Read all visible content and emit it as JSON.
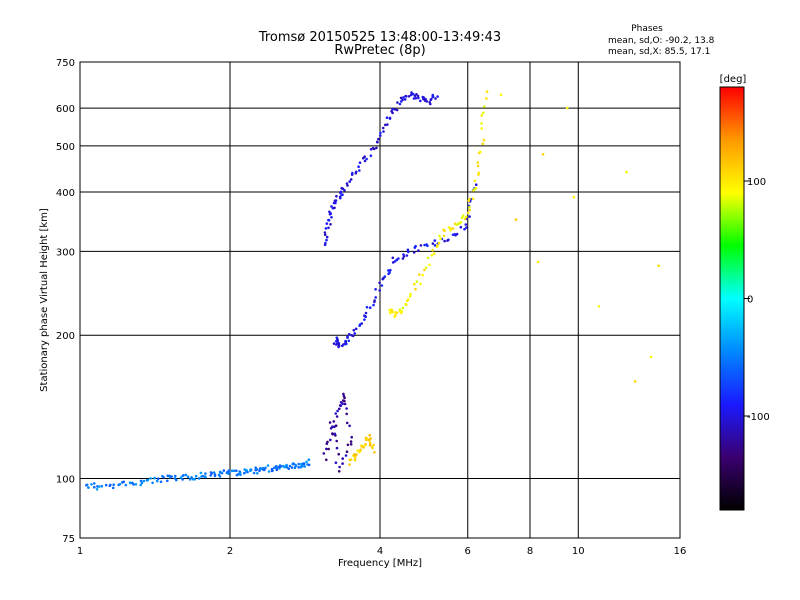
{
  "title_line1": "Tromsø 20150525 13:48:00-13:49:43",
  "title_line2": "RwPretec (8p)",
  "phase_header": "Phases",
  "phase_line_o": "mean, sd,O: -90.2, 13.8",
  "phase_line_x": "mean, sd,X:  85.5, 17.1",
  "colorbar": {
    "label": "[deg]",
    "ticks": [
      "100",
      "0",
      "-100"
    ],
    "tick_values": [
      100,
      0,
      -100
    ],
    "range": [
      -180,
      180
    ],
    "colors": [
      "#000000",
      "#3a0070",
      "#1a1aff",
      "#0088ff",
      "#00ffff",
      "#00ff00",
      "#ffff00",
      "#ff9900",
      "#ff0000"
    ]
  },
  "chart_data": {
    "type": "scatter",
    "title": "Tromsø 20150525 13:48:00-13:49:43",
    "subtitle": "RwPretec (8p)",
    "xlabel": "Frequency [MHz]",
    "ylabel": "Stationary phase Virtual Height [km]",
    "xscale": "log",
    "yscale": "log",
    "xlim": [
      1,
      16
    ],
    "ylim": [
      75,
      750
    ],
    "xticks": [
      1,
      2,
      4,
      6,
      8,
      10,
      16
    ],
    "xtick_labels": [
      "1",
      "2",
      "4",
      "6",
      "8",
      "10",
      "16"
    ],
    "yticks": [
      75,
      100,
      200,
      300,
      400,
      500,
      600,
      750
    ],
    "ytick_labels": [
      "75",
      "100",
      "200",
      "300",
      "400",
      "500",
      "600",
      "750"
    ],
    "grid": true,
    "color_by": "phase (deg)",
    "traces": [
      {
        "id": "e-layer",
        "x": [
          1.03,
          1.1,
          1.2,
          1.3,
          1.4,
          1.5,
          1.6,
          1.7,
          1.8,
          1.9,
          2.0,
          2.1,
          2.2,
          2.3,
          2.4,
          2.5,
          2.6,
          2.7,
          2.8,
          2.9
        ],
        "y": [
          97,
          96,
          97,
          98,
          99,
          100,
          100,
          101,
          102,
          102,
          103,
          103,
          104,
          104,
          105,
          105,
          106,
          106,
          107,
          108
        ],
        "phase": -50
      },
      {
        "id": "es-patch",
        "x": [
          3.1,
          3.2,
          3.3,
          3.4,
          3.5,
          3.3,
          3.2
        ],
        "y": [
          110,
          125,
          140,
          150,
          120,
          105,
          132
        ],
        "phase": -120
      },
      {
        "id": "es-patch-x",
        "x": [
          3.5,
          3.6,
          3.7,
          3.8,
          3.9
        ],
        "y": [
          108,
          112,
          118,
          122,
          115
        ],
        "phase": 110
      },
      {
        "id": "f-trace-o-low",
        "x": [
          3.25,
          3.3,
          3.4,
          3.5,
          3.7,
          3.9,
          4.1,
          4.3,
          4.6,
          5.0,
          5.5,
          6.0,
          6.2
        ],
        "y": [
          195,
          190,
          192,
          200,
          215,
          240,
          265,
          290,
          300,
          310,
          320,
          340,
          420
        ],
        "phase": -95
      },
      {
        "id": "f-trace-o-high",
        "x": [
          3.1,
          3.15,
          3.2,
          3.3,
          3.4,
          3.6,
          3.8,
          4.0,
          4.2,
          4.4,
          4.6,
          4.8,
          5.0,
          5.2
        ],
        "y": [
          310,
          340,
          370,
          390,
          410,
          440,
          480,
          520,
          580,
          620,
          640,
          630,
          620,
          640
        ],
        "phase": -100
      },
      {
        "id": "f-trace-x",
        "x": [
          4.2,
          4.3,
          4.5,
          4.8,
          5.1,
          5.4,
          5.7,
          6.0,
          6.2,
          6.4,
          6.5
        ],
        "y": [
          225,
          220,
          230,
          260,
          300,
          330,
          340,
          360,
          410,
          500,
          650
        ],
        "phase": 95
      },
      {
        "id": "scattered-high",
        "x": [
          7.0,
          7.5,
          8.3,
          8.5,
          9.5,
          9.8,
          11.0,
          12.5,
          13.0,
          14.0,
          14.5
        ],
        "y": [
          640,
          350,
          285,
          480,
          600,
          390,
          230,
          440,
          160,
          180,
          280
        ],
        "phase": 100
      }
    ]
  }
}
